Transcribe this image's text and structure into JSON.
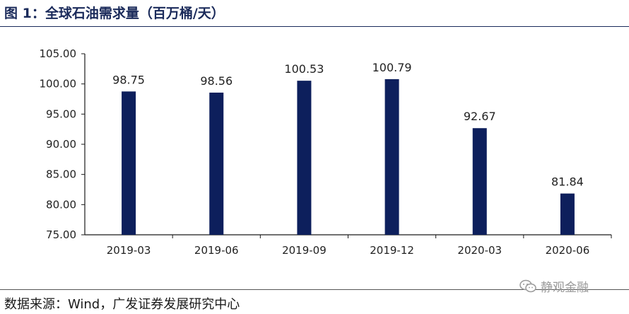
{
  "header": {
    "title": "图 1：全球石油需求量（百万桶/天）"
  },
  "footer": {
    "source": "数据来源：Wind，广发证券发展研究中心"
  },
  "watermark": {
    "text": "静观金融",
    "icon": "wechat-icon"
  },
  "colors": {
    "bar": "#0d1f5c",
    "axis": "#1a1a1a",
    "title": "#1a2a5a"
  },
  "chart_data": {
    "type": "bar",
    "title": "",
    "xlabel": "",
    "ylabel": "",
    "categories": [
      "2019-03",
      "2019-06",
      "2019-09",
      "2019-12",
      "2020-03",
      "2020-06"
    ],
    "values": [
      98.75,
      98.56,
      100.53,
      100.79,
      92.67,
      81.84
    ],
    "value_labels": [
      "98.75",
      "98.56",
      "100.53",
      "100.79",
      "92.67",
      "81.84"
    ],
    "y_ticks": [
      "75.00",
      "80.00",
      "85.00",
      "90.00",
      "95.00",
      "100.00",
      "105.00"
    ],
    "ylim": [
      75,
      105
    ],
    "grid": false,
    "legend": "none"
  }
}
